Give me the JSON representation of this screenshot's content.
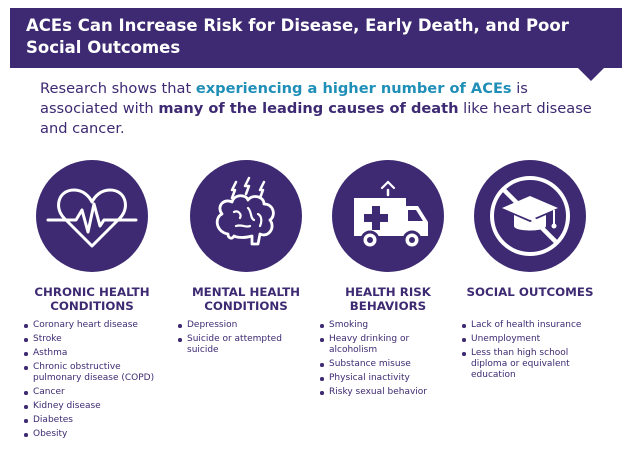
{
  "banner": {
    "title": "ACEs Can Increase Risk for Disease, Early Death, and Poor Social Outcomes"
  },
  "intro": {
    "part1": "Research shows that ",
    "highlight1": "experiencing a higher number of ACEs",
    "part2": " is associated with ",
    "highlight2": "many of the leading causes of death",
    "part3": " like heart disease and cancer."
  },
  "colors": {
    "primary": "#3d2a72",
    "accent": "#1f8fb8"
  },
  "columns": [
    {
      "icon": "heart-pulse-icon",
      "heading": "CHRONIC HEALTH CONDITIONS",
      "items": [
        "Coronary heart disease",
        "Stroke",
        "Asthma",
        "Chronic obstructive pulmonary disease (COPD)",
        "Cancer",
        "Kidney disease",
        "Diabetes",
        "Obesity"
      ]
    },
    {
      "icon": "brain-icon",
      "heading": "MENTAL HEALTH CONDITIONS",
      "items": [
        "Depression",
        "Suicide or attempted suicide"
      ]
    },
    {
      "icon": "ambulance-icon",
      "heading": "HEALTH RISK BEHAVIORS",
      "items": [
        "Smoking",
        "Heavy drinking or alcoholism",
        "Substance misuse",
        "Physical inactivity",
        "Risky sexual behavior"
      ]
    },
    {
      "icon": "no-graduation-cap-icon",
      "heading": "SOCIAL OUTCOMES",
      "items": [
        "Lack of health insurance",
        "Unemployment",
        "Less than high school diploma or equivalent education"
      ]
    }
  ]
}
